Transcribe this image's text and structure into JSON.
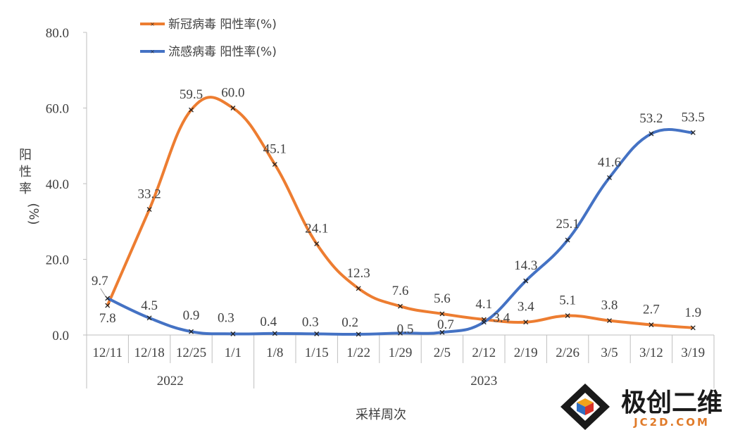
{
  "chart_data": {
    "type": "line",
    "categories": [
      "12/11",
      "12/18",
      "12/25",
      "1/1",
      "1/8",
      "1/15",
      "1/22",
      "1/29",
      "2/5",
      "2/12",
      "2/19",
      "2/26",
      "3/5",
      "3/12",
      "3/19"
    ],
    "groups": [
      {
        "label": "2022",
        "start": 0,
        "end": 3
      },
      {
        "label": "2023",
        "start": 4,
        "end": 14
      }
    ],
    "series": [
      {
        "name": "新冠病毒 阳性率(%)",
        "color": "#ED7D31",
        "values": [
          7.8,
          33.2,
          59.5,
          60.0,
          45.1,
          24.1,
          12.3,
          7.6,
          5.6,
          4.1,
          3.4,
          5.1,
          3.8,
          2.7,
          1.9
        ]
      },
      {
        "name": "流感病毒 阳性率(%)",
        "color": "#4472C4",
        "values": [
          9.7,
          4.5,
          0.9,
          0.3,
          0.4,
          0.3,
          0.2,
          0.5,
          0.7,
          3.4,
          14.3,
          25.1,
          41.6,
          53.2,
          53.5
        ]
      }
    ],
    "yticks": [
      "0.0",
      "20.0",
      "40.0",
      "60.0",
      "80.0"
    ],
    "ylim": [
      0,
      80
    ],
    "ylabel": "阳性率(%)",
    "xlabel": "采样周次",
    "legend_position": "top-left",
    "grid": false
  },
  "watermark": {
    "name": "极创二维",
    "url": "JC2D.COM"
  }
}
